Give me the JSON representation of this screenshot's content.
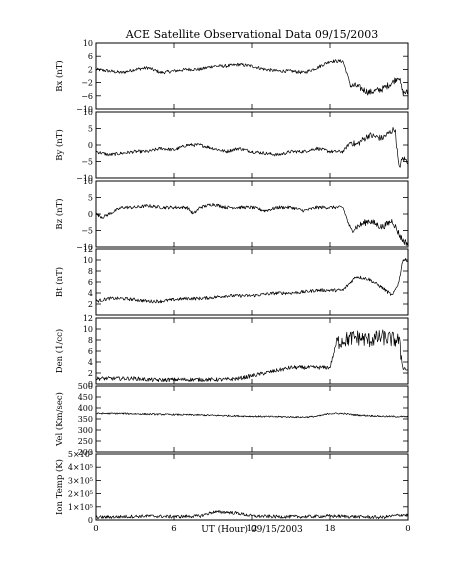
{
  "figure": {
    "title": "ACE Satellite Observational Data   09/15/2003",
    "xlabel": "UT (Hour)  09/15/2003",
    "x_tick_labels": [
      "0",
      "6",
      "12",
      "18",
      "0"
    ]
  },
  "chart_data": [
    {
      "type": "line",
      "ylabel": "Bx (nT)",
      "xlim": [
        0,
        24
      ],
      "ylim": [
        -10,
        10
      ],
      "yticks": [
        -10,
        -6,
        -2,
        2,
        6,
        10
      ],
      "ytick_labels": [
        "−10",
        "−6",
        "−2",
        "2",
        "6",
        "10"
      ],
      "series": [
        {
          "x": [
            0,
            1,
            2,
            3,
            4,
            5,
            6,
            7,
            8,
            9,
            10,
            11,
            12,
            13,
            14,
            15,
            16,
            17,
            18,
            19,
            19.6,
            20,
            21,
            22,
            22.8,
            23.3,
            23.6,
            24
          ],
          "values": [
            2,
            1.5,
            1,
            2,
            2.5,
            1,
            1.5,
            2,
            2,
            3,
            3,
            3.5,
            3,
            2,
            1.5,
            1.5,
            1,
            2.5,
            4.5,
            4.5,
            -3,
            -3,
            -5,
            -4,
            -2,
            0,
            -5,
            -5
          ]
        }
      ]
    },
    {
      "type": "line",
      "ylabel": "By (nT)",
      "xlim": [
        0,
        24
      ],
      "ylim": [
        -10,
        10
      ],
      "yticks": [
        -10,
        -5,
        0,
        5,
        10
      ],
      "ytick_labels": [
        "−10",
        "−5",
        "0",
        "5",
        "10"
      ],
      "series": [
        {
          "x": [
            0,
            1,
            2,
            3,
            4,
            5,
            6,
            7,
            8,
            9,
            10,
            11,
            12,
            13,
            14,
            15,
            16,
            17,
            18,
            19,
            19.6,
            20,
            21,
            22,
            23,
            23.3,
            23.6,
            24
          ],
          "values": [
            -2,
            -3,
            -2.5,
            -2,
            -2,
            -1,
            -1.5,
            0,
            0,
            -1,
            -2,
            -1,
            -2,
            -2.5,
            -3,
            -2,
            -2,
            -1,
            -2,
            -2,
            1,
            0,
            3,
            2,
            5,
            -7,
            -4,
            -5
          ]
        }
      ]
    },
    {
      "type": "line",
      "ylabel": "Bz (nT)",
      "xlim": [
        0,
        24
      ],
      "ylim": [
        -10,
        10
      ],
      "yticks": [
        -10,
        -5,
        0,
        5,
        10
      ],
      "ytick_labels": [
        "−10",
        "−5",
        "0",
        "5",
        "10"
      ],
      "series": [
        {
          "x": [
            0,
            0.5,
            1,
            2,
            3,
            4,
            5,
            6,
            7,
            7.5,
            8,
            9,
            10,
            11,
            12,
            13,
            14,
            15,
            16,
            17,
            18,
            19,
            19.6,
            20,
            21,
            22,
            22.8,
            23.3,
            23.6,
            24
          ],
          "values": [
            0,
            -1,
            0,
            2,
            2,
            2.5,
            2,
            2,
            2,
            0,
            2,
            3,
            2,
            2,
            2,
            1,
            2,
            2,
            1,
            2,
            2,
            2,
            -5,
            -4,
            -2,
            -4,
            -2,
            -6,
            -8,
            -9
          ]
        }
      ]
    },
    {
      "type": "line",
      "ylabel": "Bt (nT)",
      "xlim": [
        0,
        24
      ],
      "ylim": [
        0,
        12
      ],
      "yticks": [
        2,
        4,
        6,
        8,
        10,
        12
      ],
      "ytick_labels": [
        "2",
        "4",
        "6",
        "8",
        "10",
        "12"
      ],
      "series": [
        {
          "x": [
            0,
            1,
            2,
            3,
            4,
            5,
            6,
            7,
            8,
            9,
            10,
            11,
            12,
            13,
            14,
            15,
            16,
            17,
            18,
            19,
            19.6,
            20,
            21,
            22,
            22.8,
            23.3,
            23.6,
            24
          ],
          "values": [
            2.5,
            3,
            3,
            2.8,
            2.5,
            2.5,
            2.8,
            3,
            3,
            3.2,
            3.5,
            3.5,
            3.5,
            3.8,
            4,
            4,
            4.2,
            4.5,
            4.5,
            4.5,
            6,
            7,
            6.5,
            5,
            3.5,
            6,
            10,
            10
          ]
        }
      ]
    },
    {
      "type": "line",
      "ylabel": "Den (1/cc)",
      "xlim": [
        0,
        24
      ],
      "ylim": [
        0,
        12
      ],
      "yticks": [
        0,
        2,
        4,
        6,
        8,
        10,
        12
      ],
      "ytick_labels": [
        "0",
        "2",
        "4",
        "6",
        "8",
        "10",
        "12"
      ],
      "series": [
        {
          "x": [
            0,
            1,
            2,
            3,
            4,
            5,
            6,
            7,
            8,
            9,
            10,
            11,
            12,
            13,
            14,
            15,
            16,
            17,
            18,
            18.5,
            19,
            20,
            21,
            22,
            23,
            23.3,
            23.6,
            24
          ],
          "values": [
            1,
            1,
            1,
            1,
            0.8,
            0.7,
            0.8,
            0.8,
            0.8,
            0.8,
            0.8,
            1,
            1.5,
            2,
            2.5,
            3,
            3,
            3,
            3,
            7.5,
            8,
            8.5,
            8,
            8.5,
            8,
            8,
            3,
            2.5
          ]
        }
      ]
    },
    {
      "type": "line",
      "ylabel": "Vel (Km/sec)",
      "xlim": [
        0,
        24
      ],
      "ylim": [
        200,
        500
      ],
      "yticks": [
        200,
        250,
        300,
        350,
        400,
        450,
        500
      ],
      "ytick_labels": [
        "200",
        "250",
        "300",
        "350",
        "400",
        "450",
        "500"
      ],
      "series": [
        {
          "x": [
            0,
            2,
            4,
            6,
            8,
            10,
            12,
            14,
            16,
            17,
            18,
            19,
            20,
            22,
            24
          ],
          "values": [
            375,
            375,
            372,
            370,
            368,
            365,
            362,
            360,
            358,
            362,
            375,
            375,
            368,
            362,
            360
          ]
        }
      ]
    },
    {
      "type": "line",
      "ylabel": "Ion Temp (K)",
      "xlim": [
        0,
        24
      ],
      "ylim": [
        0,
        500000
      ],
      "yticks": [
        0,
        100000,
        200000,
        300000,
        400000,
        500000
      ],
      "ytick_labels": [
        "0",
        "1×10⁵",
        "2×10⁵",
        "3×10⁵",
        "4×10⁵",
        "5×10⁵"
      ],
      "series": [
        {
          "x": [
            0,
            2,
            4,
            6,
            8,
            9,
            10,
            11,
            12,
            14,
            16,
            18,
            20,
            22,
            23.6,
            24
          ],
          "values": [
            20000,
            25000,
            30000,
            25000,
            30000,
            60000,
            60000,
            50000,
            30000,
            25000,
            25000,
            30000,
            25000,
            20000,
            40000,
            35000
          ]
        }
      ]
    }
  ]
}
